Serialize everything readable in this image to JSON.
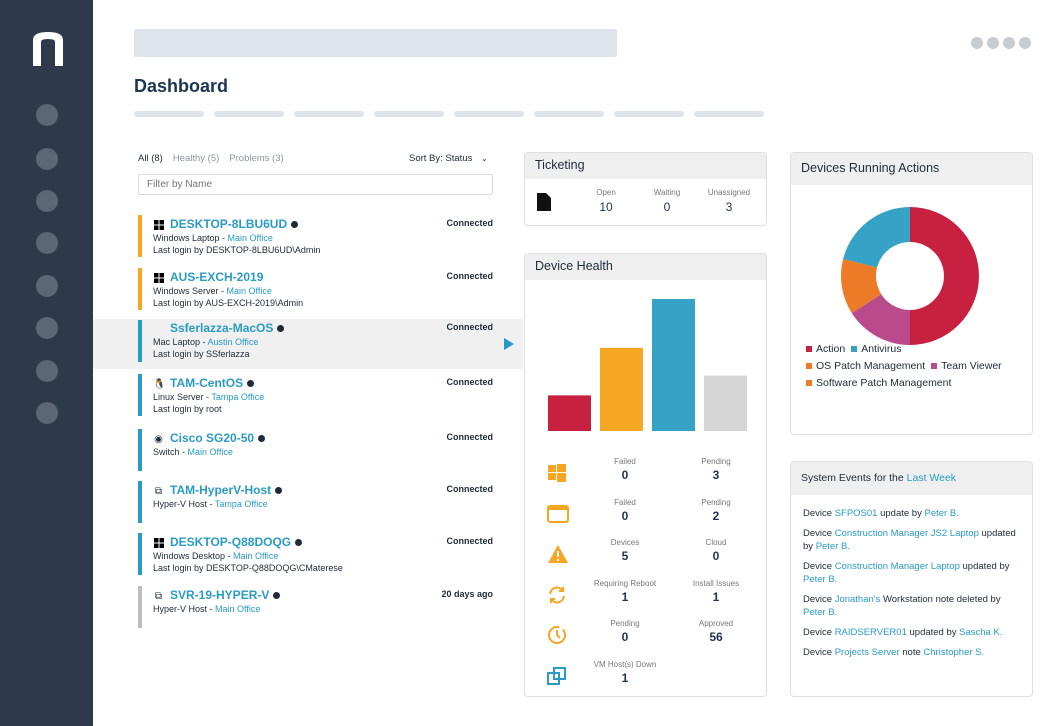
{
  "header": {
    "title": "Dashboard"
  },
  "device_list": {
    "filters": [
      {
        "label": "All (8)",
        "active": true
      },
      {
        "label": "Healthy (5)",
        "active": false
      },
      {
        "label": "Problems (3)",
        "active": false
      }
    ],
    "sort_label": "Sort By: Status",
    "sort_icon": "chevron-down-icon",
    "filter_placeholder": "Filter by Name",
    "devices": [
      {
        "name": "DESKTOP-8LBU6UD",
        "icon": "windows-icon",
        "info": true,
        "color": "#f5a623",
        "type": "Windows Laptop",
        "location": "Main Office",
        "login": "Last login by DESKTOP-8LBU6UD\\Admin",
        "status": "Connected"
      },
      {
        "name": "AUS-EXCH-2019",
        "icon": "windows-icon",
        "info": false,
        "color": "#f5a623",
        "type": "Windows Server",
        "location": "Main Office",
        "login": "Last login by AUS-EXCH-2019\\Admin",
        "status": "Connected"
      },
      {
        "name": "Ssferlazza-MacOS",
        "icon": "apple-icon",
        "info": true,
        "color": "#2a9bc4",
        "type": "Mac Laptop",
        "location": "Austin Office",
        "login": "Last login by SSferlazza",
        "status": "Connected",
        "selected": true
      },
      {
        "name": "TAM-CentOS",
        "icon": "linux-icon",
        "info": true,
        "color": "#2a9bc4",
        "type": "Linux Server",
        "location": "Tampa Office",
        "login": "Last login by root",
        "status": "Connected"
      },
      {
        "name": "Cisco SG20-50",
        "icon": "globe-icon",
        "info": true,
        "color": "#2a9bc4",
        "type": "Switch",
        "location": "Main Office",
        "login": "",
        "status": "Connected"
      },
      {
        "name": "TAM-HyperV-Host",
        "icon": "hyperv-icon",
        "info": true,
        "color": "#2a9bc4",
        "type": "Hyper-V Host",
        "location": "Tampa Office",
        "login": "",
        "status": "Connected"
      },
      {
        "name": "DESKTOP-Q88DOQG",
        "icon": "windows-icon",
        "info": true,
        "color": "#2a9bc4",
        "type": "Windows Desktop",
        "location": "Main Office",
        "login": "Last login by DESKTOP-Q88DOQG\\CMaterese",
        "status": "Connected"
      },
      {
        "name": "SVR-19-HYPER-V",
        "icon": "hyperv-icon",
        "info": true,
        "color": "#bdbdbd",
        "type": "Hyper-V Host",
        "location": "Main Office",
        "login": "",
        "status": "20 days ago"
      }
    ]
  },
  "ticketing": {
    "title": "Ticketing",
    "icon": "document-icon",
    "stats": [
      {
        "label": "Open",
        "value": "10"
      },
      {
        "label": "Waiting",
        "value": "0"
      },
      {
        "label": "Unassigned",
        "value": "3"
      }
    ]
  },
  "device_health": {
    "title": "Device Health",
    "rows": [
      {
        "icon": "windows-icon",
        "a": {
          "label": "Failed",
          "value": "0"
        },
        "b": {
          "label": "Pending",
          "value": "3"
        }
      },
      {
        "icon": "window-icon",
        "a": {
          "label": "Failed",
          "value": "0"
        },
        "b": {
          "label": "Pending",
          "value": "2"
        }
      },
      {
        "icon": "warning-icon",
        "a": {
          "label": "Devices",
          "value": "5"
        },
        "b": {
          "label": "Cloud",
          "value": "0"
        }
      },
      {
        "icon": "refresh-icon",
        "a": {
          "label": "Requiring Reboot",
          "value": "1"
        },
        "b": {
          "label": "Install Issues",
          "value": "1"
        }
      },
      {
        "icon": "clock-icon",
        "a": {
          "label": "Pending",
          "value": "0"
        },
        "b": {
          "label": "Approved",
          "value": "56"
        }
      },
      {
        "icon": "vm-icon",
        "a": {
          "label": "VM Host(s) Down",
          "value": "1"
        }
      }
    ]
  },
  "running_actions": {
    "title": "Devices Running Actions"
  },
  "chart_data": [
    {
      "type": "bar",
      "values": [
        27,
        63,
        100,
        42
      ],
      "colors": [
        "#c8203f",
        "#f5a623",
        "#36a2c6",
        "#d6d6d6"
      ]
    },
    {
      "type": "pie",
      "donut": true,
      "series": [
        {
          "name": "Action",
          "value": 50,
          "color": "#c8203f"
        },
        {
          "name": "Antivirus",
          "value": 21,
          "color": "#36a2c6"
        },
        {
          "name": "OS Patch Management",
          "value": 13,
          "color": "#ec7a27"
        },
        {
          "name": "Team Viewer",
          "value": 16,
          "color": "#b94a8c"
        },
        {
          "name": "Software Patch Management",
          "value": 0,
          "color": "#ec7a27"
        }
      ]
    }
  ],
  "system_events": {
    "title_prefix": "System Events for the ",
    "title_link": "Last Week",
    "events": [
      [
        [
          "t",
          "Device "
        ],
        [
          "l",
          "SFPOS01"
        ],
        [
          "t",
          " update by "
        ],
        [
          "l",
          "Peter B."
        ]
      ],
      [
        [
          "t",
          "Device "
        ],
        [
          "l",
          "Construction Manager JS2 Laptop"
        ],
        [
          "t",
          " updated by "
        ],
        [
          "l",
          "Peter B."
        ]
      ],
      [
        [
          "t",
          "Device "
        ],
        [
          "l",
          "Construction Manager Laptop"
        ],
        [
          "t",
          " updated by "
        ],
        [
          "l",
          "Peter B."
        ]
      ],
      [
        [
          "t",
          "Device "
        ],
        [
          "l",
          "Jonathan's"
        ],
        [
          "t",
          " Workstation note deleted by "
        ],
        [
          "l",
          "Peter B."
        ]
      ],
      [
        [
          "t",
          "Device "
        ],
        [
          "l",
          "RAIDSERVER01"
        ],
        [
          "t",
          " updated by "
        ],
        [
          "l",
          "Sascha K."
        ]
      ],
      [
        [
          "t",
          "Device "
        ],
        [
          "l",
          "Projects Server"
        ],
        [
          "t",
          " note "
        ],
        [
          "l",
          "Christopher S."
        ]
      ]
    ]
  }
}
